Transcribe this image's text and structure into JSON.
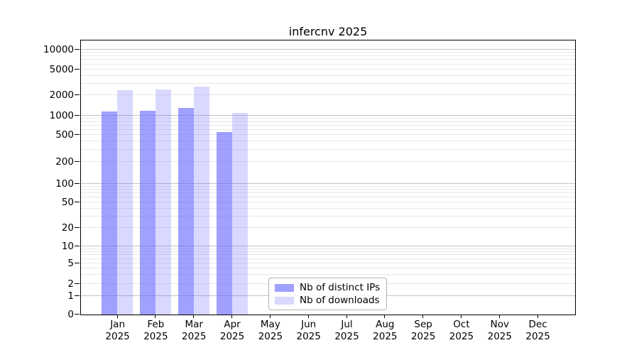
{
  "title": "infercnv 2025",
  "chart_data": {
    "type": "bar",
    "title": "infercnv 2025",
    "yscale": "symlog",
    "grid": true,
    "legend_position": "lower center",
    "categories": [
      "Jan 2025",
      "Feb 2025",
      "Mar 2025",
      "Apr 2025",
      "May 2025",
      "Jun 2025",
      "Jul 2025",
      "Aug 2025",
      "Sep 2025",
      "Oct 2025",
      "Nov 2025",
      "Dec 2025"
    ],
    "series": [
      {
        "name": "Nb of distinct IPs",
        "color": "#6666ff",
        "alpha": 0.62,
        "values": [
          1150,
          1180,
          1300,
          550,
          null,
          null,
          null,
          null,
          null,
          null,
          null,
          null
        ]
      },
      {
        "name": "Nb of downloads",
        "color": "#6666ff",
        "alpha": 0.25,
        "values": [
          2390,
          2440,
          2700,
          1080,
          null,
          null,
          null,
          null,
          null,
          null,
          null,
          null
        ]
      }
    ],
    "y_ticks": [
      0,
      1,
      2,
      5,
      10,
      20,
      50,
      100,
      200,
      500,
      1000,
      2000,
      5000,
      10000
    ],
    "ylim": [
      0,
      10000
    ],
    "xlabel": "",
    "ylabel": ""
  },
  "colors": {
    "bar_base": "#6666ff",
    "grid_decade": "#c3c3c3",
    "grid_minor": "#e8e8e8",
    "axis": "#000000"
  }
}
